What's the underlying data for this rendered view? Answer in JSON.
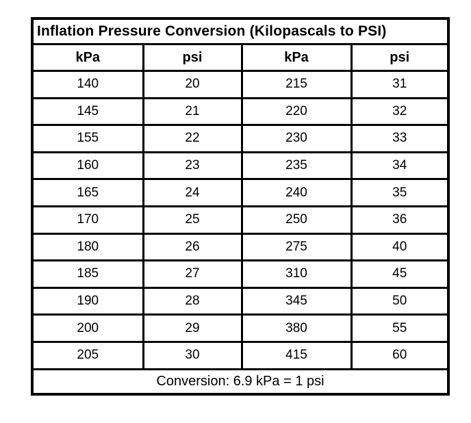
{
  "chart_data": {
    "type": "table",
    "title": "Inflation Pressure Conversion (Kilopascals to PSI)",
    "columns": [
      "kPa",
      "psi",
      "kPa",
      "psi"
    ],
    "rows": [
      [
        140,
        20,
        215,
        31
      ],
      [
        145,
        21,
        220,
        32
      ],
      [
        155,
        22,
        230,
        33
      ],
      [
        160,
        23,
        235,
        34
      ],
      [
        165,
        24,
        240,
        35
      ],
      [
        170,
        25,
        250,
        36
      ],
      [
        180,
        26,
        275,
        40
      ],
      [
        185,
        27,
        310,
        45
      ],
      [
        190,
        28,
        345,
        50
      ],
      [
        200,
        29,
        380,
        55
      ],
      [
        205,
        30,
        415,
        60
      ]
    ],
    "footnote": "Conversion: 6.9 kPa = 1 psi"
  },
  "colors": {
    "border": "#000000",
    "text": "#000000",
    "background": "#ffffff"
  }
}
